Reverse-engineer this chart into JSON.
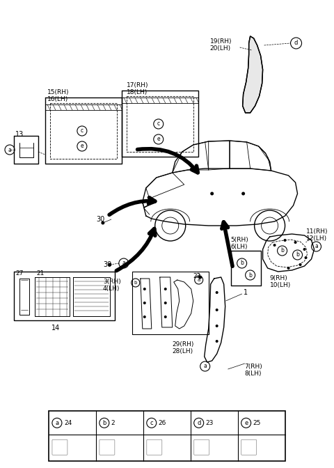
{
  "background_color": "#ffffff",
  "fig_width": 4.8,
  "fig_height": 6.72,
  "dpi": 100,
  "legend_items": [
    {
      "label": "a",
      "number": "24"
    },
    {
      "label": "b",
      "number": "2"
    },
    {
      "label": "c",
      "number": "26"
    },
    {
      "label": "d",
      "number": "23"
    },
    {
      "label": "e",
      "number": "25"
    }
  ]
}
